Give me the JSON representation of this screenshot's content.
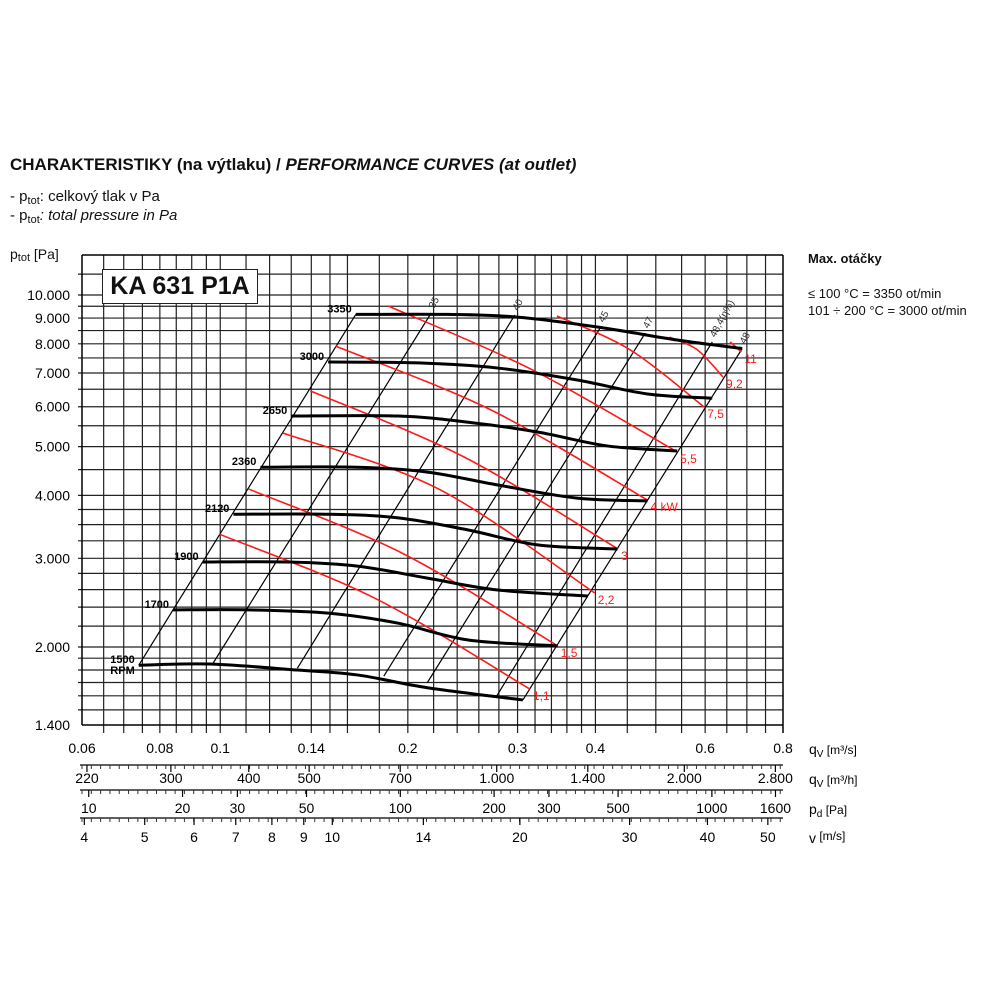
{
  "header": {
    "title_cz": "CHARAKTERISTIKY (na výtlaku) / ",
    "title_en": "PERFORMANCE CURVES (at outlet)",
    "legend": [
      {
        "symbol": "p",
        "sub": "tot",
        "text_prefix": "- ",
        "text": ": celkový tlak v Pa"
      },
      {
        "symbol": "p",
        "sub": "tot",
        "text_prefix": "- ",
        "text": ": total pressure in Pa"
      }
    ]
  },
  "max_speed": {
    "title": "Max. otáčky",
    "lines": [
      "≤ 100 °C = 3350 ot/min",
      "101 ÷ 200 °C = 3000 ot/min"
    ]
  },
  "chart_data": {
    "type": "line",
    "title": "KA 631 P1A",
    "xscale": "log",
    "yscale": "log",
    "xlim": [
      0.06,
      0.8
    ],
    "ylim": [
      1400,
      12000
    ],
    "grid": true,
    "colors": {
      "speed_curves": "#000000",
      "efficiency_lines": "#000000",
      "power_lines": "#ff1a1a",
      "power_labels": "#ff1a1a"
    },
    "ylabel": {
      "symbol": "p",
      "sub": "tot",
      "unit": " [Pa]"
    },
    "yticks": [
      {
        "value": 10000,
        "label": "10.000"
      },
      {
        "value": 9000,
        "label": "9.000"
      },
      {
        "value": 8000,
        "label": "8.000"
      },
      {
        "value": 7000,
        "label": "7.000"
      },
      {
        "value": 6000,
        "label": "6.000"
      },
      {
        "value": 5000,
        "label": "5.000"
      },
      {
        "value": 4000,
        "label": "4.000"
      },
      {
        "value": 3000,
        "label": "3.000"
      },
      {
        "value": 2000,
        "label": "2.000"
      },
      {
        "value": 1400,
        "label": "1.400"
      }
    ],
    "x_axes": [
      {
        "symbol": "q",
        "sub": "V",
        "unit": " [m³/s]",
        "ticks": [
          {
            "value": 0.06,
            "label": "0.06"
          },
          {
            "value": 0.08,
            "label": "0.08"
          },
          {
            "value": 0.1,
            "label": "0.1"
          },
          {
            "value": 0.14,
            "label": "0.14"
          },
          {
            "value": 0.2,
            "label": "0.2"
          },
          {
            "value": 0.3,
            "label": "0.3"
          },
          {
            "value": 0.4,
            "label": "0.4"
          },
          {
            "value": 0.6,
            "label": "0.6"
          },
          {
            "value": 0.8,
            "label": "0.8"
          }
        ]
      },
      {
        "symbol": "q",
        "sub": "V",
        "unit": " [m³/h]",
        "ticks": [
          {
            "value": 220,
            "label": "220"
          },
          {
            "value": 300,
            "label": "300"
          },
          {
            "value": 400,
            "label": "400"
          },
          {
            "value": 500,
            "label": "500"
          },
          {
            "value": 700,
            "label": "700"
          },
          {
            "value": 1000,
            "label": "1.000"
          },
          {
            "value": 1400,
            "label": "1.400"
          },
          {
            "value": 2000,
            "label": "2.000"
          },
          {
            "value": 2800,
            "label": "2.800"
          }
        ]
      },
      {
        "symbol": "p",
        "sub": "d",
        "unit": " [Pa]",
        "ticks": [
          {
            "value": 10,
            "label": "10"
          },
          {
            "value": 20,
            "label": "20"
          },
          {
            "value": 30,
            "label": "30"
          },
          {
            "value": 50,
            "label": "50"
          },
          {
            "value": 100,
            "label": "100"
          },
          {
            "value": 200,
            "label": "200"
          },
          {
            "value": 300,
            "label": "300"
          },
          {
            "value": 500,
            "label": "500"
          },
          {
            "value": 1000,
            "label": "1000"
          },
          {
            "value": 1600,
            "label": "1600"
          }
        ]
      },
      {
        "symbol": "v",
        "sub": "",
        "unit": " [m/s]",
        "ticks": [
          {
            "value": 4,
            "label": "4"
          },
          {
            "value": 5,
            "label": "5"
          },
          {
            "value": 6,
            "label": "6"
          },
          {
            "value": 7,
            "label": "7"
          },
          {
            "value": 8,
            "label": "8"
          },
          {
            "value": 9,
            "label": "9"
          },
          {
            "value": 10,
            "label": "10"
          },
          {
            "value": 14,
            "label": "14"
          },
          {
            "value": 20,
            "label": "20"
          },
          {
            "value": 30,
            "label": "30"
          },
          {
            "value": 40,
            "label": "40"
          },
          {
            "value": 50,
            "label": "50"
          }
        ]
      }
    ],
    "speed_curves": [
      {
        "name": "3350",
        "rpm": 3350,
        "points": [
          [
            0.165,
            9150
          ],
          [
            0.232,
            9150
          ],
          [
            0.3,
            9040
          ],
          [
            0.403,
            8640
          ],
          [
            0.541,
            8140
          ],
          [
            0.688,
            7830
          ]
        ]
      },
      {
        "name": "3000",
        "rpm": 3000,
        "points": [
          [
            0.149,
            7360
          ],
          [
            0.208,
            7330
          ],
          [
            0.279,
            7160
          ],
          [
            0.374,
            6780
          ],
          [
            0.485,
            6360
          ],
          [
            0.616,
            6240
          ]
        ]
      },
      {
        "name": "2650",
        "rpm": 2650,
        "points": [
          [
            0.13,
            5750
          ],
          [
            0.193,
            5750
          ],
          [
            0.25,
            5590
          ],
          [
            0.323,
            5345
          ],
          [
            0.418,
            5015
          ],
          [
            0.541,
            4900
          ]
        ]
      },
      {
        "name": "2360",
        "rpm": 2360,
        "points": [
          [
            0.116,
            4550
          ],
          [
            0.166,
            4550
          ],
          [
            0.215,
            4450
          ],
          [
            0.279,
            4195
          ],
          [
            0.374,
            3950
          ],
          [
            0.485,
            3900
          ]
        ]
      },
      {
        "name": "2120",
        "rpm": 2120,
        "points": [
          [
            0.105,
            3670
          ],
          [
            0.149,
            3670
          ],
          [
            0.193,
            3610
          ],
          [
            0.25,
            3415
          ],
          [
            0.323,
            3190
          ],
          [
            0.434,
            3130
          ]
        ]
      },
      {
        "name": "1900",
        "rpm": 1900,
        "points": [
          [
            0.0937,
            2950
          ],
          [
            0.129,
            2950
          ],
          [
            0.166,
            2895
          ],
          [
            0.215,
            2740
          ],
          [
            0.279,
            2595
          ],
          [
            0.389,
            2525
          ]
        ]
      },
      {
        "name": "1700",
        "rpm": 1700,
        "points": [
          [
            0.084,
            2370
          ],
          [
            0.111,
            2370
          ],
          [
            0.149,
            2335
          ],
          [
            0.193,
            2230
          ],
          [
            0.25,
            2065
          ],
          [
            0.348,
            2010
          ]
        ]
      },
      {
        "name": "1500",
        "unit": "RPM",
        "rpm": 1500,
        "points": [
          [
            0.074,
            1840
          ],
          [
            0.096,
            1850
          ],
          [
            0.133,
            1800
          ],
          [
            0.166,
            1760
          ],
          [
            0.215,
            1660
          ],
          [
            0.306,
            1570
          ]
        ]
      }
    ],
    "efficiency_lines": [
      {
        "label": "",
        "points": [
          [
            0.074,
            1840
          ],
          [
            0.165,
            9150
          ]
        ]
      },
      {
        "label": "35",
        "points": [
          [
            0.0972,
            1850
          ],
          [
            0.218,
            9210
          ]
        ]
      },
      {
        "label": "40",
        "points": [
          [
            0.133,
            1815
          ],
          [
            0.297,
            9120
          ]
        ]
      },
      {
        "label": "45",
        "points": [
          [
            0.183,
            1750
          ],
          [
            0.408,
            8640
          ]
        ]
      },
      {
        "label": "47",
        "points": [
          [
            0.215,
            1700
          ],
          [
            0.481,
            8405
          ]
        ]
      },
      {
        "label": "48,4(η%)",
        "points": [
          [
            0.277,
            1590
          ],
          [
            0.616,
            8070
          ]
        ]
      },
      {
        "label": "48",
        "points": [
          [
            0.306,
            1570
          ],
          [
            0.688,
            7830
          ]
        ]
      }
    ],
    "power_lines": [
      {
        "label": "1,1",
        "kw": 1.1,
        "points": [
          [
            0.0997,
            3350
          ],
          [
            0.177,
            2500
          ],
          [
            0.314,
            1650
          ]
        ]
      },
      {
        "label": "1,5",
        "kw": 1.5,
        "points": [
          [
            0.111,
            4120
          ],
          [
            0.197,
            3060
          ],
          [
            0.348,
            2010
          ]
        ]
      },
      {
        "label": "2,2",
        "kw": 2.2,
        "points": [
          [
            0.126,
            5320
          ],
          [
            0.224,
            4120
          ],
          [
            0.399,
            2560
          ]
        ]
      },
      {
        "label": "3",
        "kw": 3,
        "points": [
          [
            0.1395,
            6450
          ],
          [
            0.246,
            4770
          ],
          [
            0.435,
            3130
          ]
        ]
      },
      {
        "label": "4 kW",
        "kw": 4,
        "points": [
          [
            0.153,
            7920
          ],
          [
            0.272,
            5910
          ],
          [
            0.485,
            3915
          ]
        ]
      },
      {
        "label": "5,5",
        "kw": 5.5,
        "points": [
          [
            0.186,
            9510
          ],
          [
            0.317,
            7100
          ],
          [
            0.541,
            4880
          ]
        ]
      },
      {
        "label": "7,5",
        "kw": 7.5,
        "points": [
          [
            0.347,
            9085
          ],
          [
            0.455,
            7780
          ],
          [
            0.598,
            5990
          ]
        ]
      },
      {
        "label": "9,2",
        "kw": 9.2,
        "points": [
          [
            0.526,
            8250
          ],
          [
            0.583,
            7780
          ],
          [
            0.641,
            6870
          ]
        ]
      },
      {
        "label": "11",
        "kw": 11,
        "points": [
          [
            0.658,
            8070
          ],
          [
            0.686,
            7710
          ]
        ]
      }
    ]
  }
}
